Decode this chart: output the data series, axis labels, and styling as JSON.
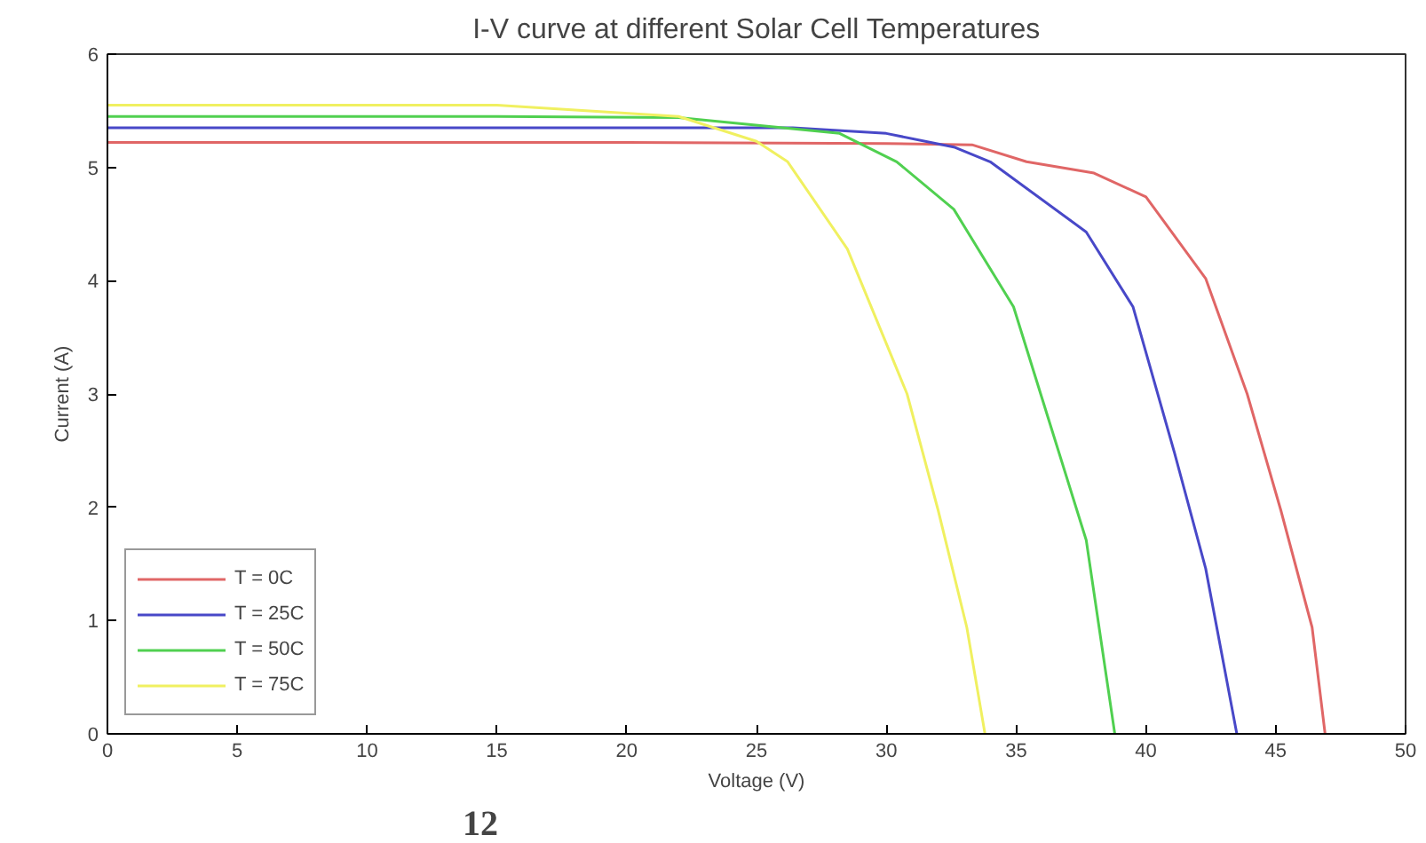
{
  "chart_data": {
    "type": "line",
    "title": "I-V curve at different Solar Cell Temperatures",
    "xlabel": "Voltage (V)",
    "ylabel": "Current (A)",
    "xlim": [
      0,
      50
    ],
    "ylim": [
      0,
      6
    ],
    "xticks": [
      0,
      5,
      10,
      15,
      20,
      25,
      30,
      35,
      40,
      45,
      50
    ],
    "yticks": [
      0,
      1,
      2,
      3,
      4,
      5,
      6
    ],
    "grid": false,
    "legend": "bottom left",
    "marker": "none",
    "line_style": "solid",
    "annotations": [
      "12"
    ],
    "series": [
      {
        "name": "T = 0C",
        "color": "#e06666",
        "x": [
          0,
          20,
          30,
          33.3,
          35.4,
          38,
          40,
          42.3,
          43.9,
          45.2,
          46.4,
          46.9
        ],
        "values": [
          5.22,
          5.22,
          5.21,
          5.2,
          5.05,
          4.95,
          4.74,
          4.02,
          3.0,
          1.97,
          0.94,
          0
        ]
      },
      {
        "name": "T = 25C",
        "color": "#4848c8",
        "x": [
          0,
          20,
          26.4,
          30,
          32.6,
          34,
          37.7,
          39.5,
          41.1,
          42.3,
          43.5
        ],
        "values": [
          5.35,
          5.35,
          5.35,
          5.3,
          5.18,
          5.05,
          4.43,
          3.77,
          2.48,
          1.46,
          0
        ]
      },
      {
        "name": "T = 50C",
        "color": "#50d050",
        "x": [
          0,
          15,
          22,
          28.2,
          30.4,
          32.6,
          34.9,
          36.3,
          37.7,
          38.8
        ],
        "values": [
          5.45,
          5.45,
          5.44,
          5.3,
          5.05,
          4.63,
          3.77,
          2.74,
          1.71,
          0
        ]
      },
      {
        "name": "T = 75C",
        "color": "#f0f060",
        "x": [
          0,
          15,
          22,
          25,
          26.2,
          28.5,
          30.8,
          32,
          33.1,
          33.8
        ],
        "values": [
          5.55,
          5.55,
          5.45,
          5.23,
          5.05,
          4.28,
          3.0,
          1.97,
          0.94,
          0
        ]
      }
    ]
  }
}
